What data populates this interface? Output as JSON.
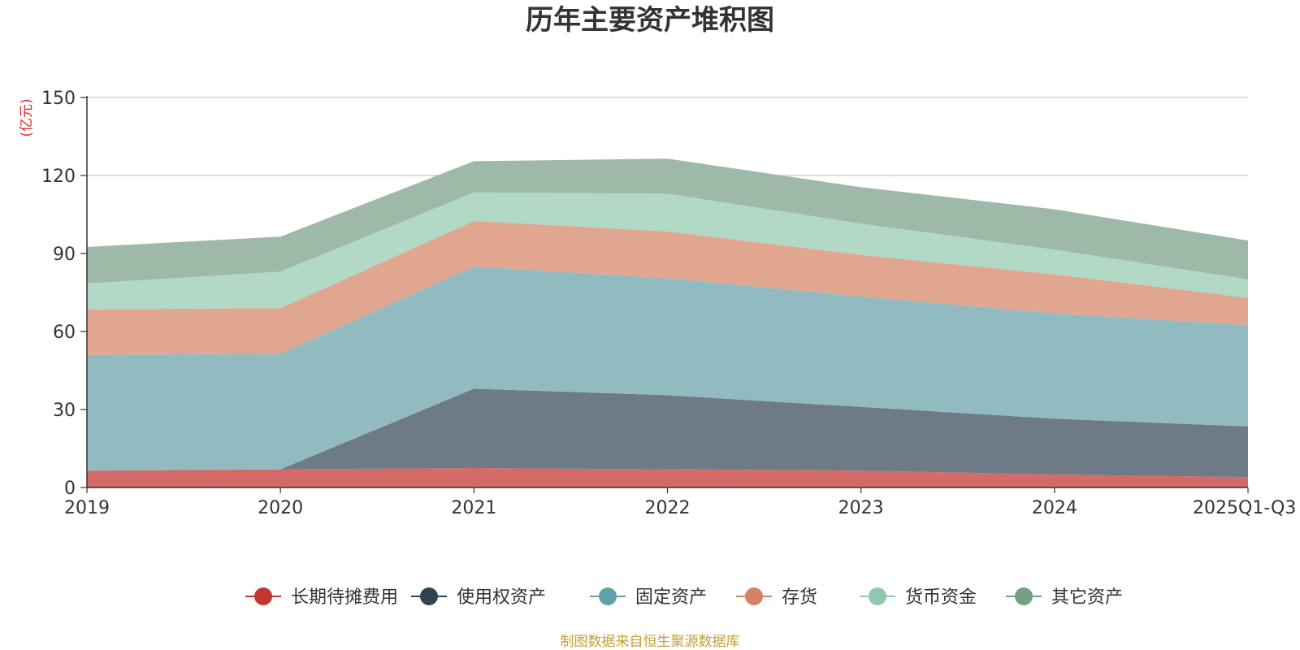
{
  "chart_data": {
    "type": "area",
    "stacked": true,
    "title": "历年主要资产堆积图",
    "ylabel": "(亿元)",
    "xlabel": "",
    "ylim": [
      0,
      150
    ],
    "yticks": [
      0,
      30,
      60,
      90,
      120,
      150
    ],
    "grid": true,
    "legend_position": "bottom",
    "categories": [
      "2019",
      "2020",
      "2021",
      "2022",
      "2023",
      "2024",
      "2025Q1-Q3"
    ],
    "series": [
      {
        "name": "长期待摊费用",
        "values": [
          6.5,
          7,
          7.5,
          7,
          6.5,
          5,
          4
        ],
        "color": "#c23531",
        "fill": "#d56b69"
      },
      {
        "name": "使用权资产",
        "values": [
          0,
          0,
          30.5,
          28.5,
          24.5,
          21.5,
          19.5
        ],
        "color": "#2f4554",
        "fill": "#6e7b86"
      },
      {
        "name": "固定资产",
        "values": [
          44.5,
          44.5,
          47,
          45,
          42.5,
          40.5,
          39
        ],
        "color": "#61a0a8",
        "fill": "#91bbc1"
      },
      {
        "name": "存货",
        "values": [
          17.5,
          17.5,
          17.5,
          18,
          16,
          15,
          10.5
        ],
        "color": "#d48265",
        "fill": "#e1a690"
      },
      {
        "name": "货币资金",
        "values": [
          10,
          14,
          11,
          14.5,
          12,
          9.5,
          7
        ],
        "color": "#91c7ae",
        "fill": "#b2d8c6"
      },
      {
        "name": "其它资产",
        "values": [
          14,
          13.5,
          12,
          13.5,
          14,
          15.5,
          15
        ],
        "color": "#749f83",
        "fill": "#9eb9a7"
      }
    ],
    "source": "制图数据来自恒生聚源数据库"
  }
}
